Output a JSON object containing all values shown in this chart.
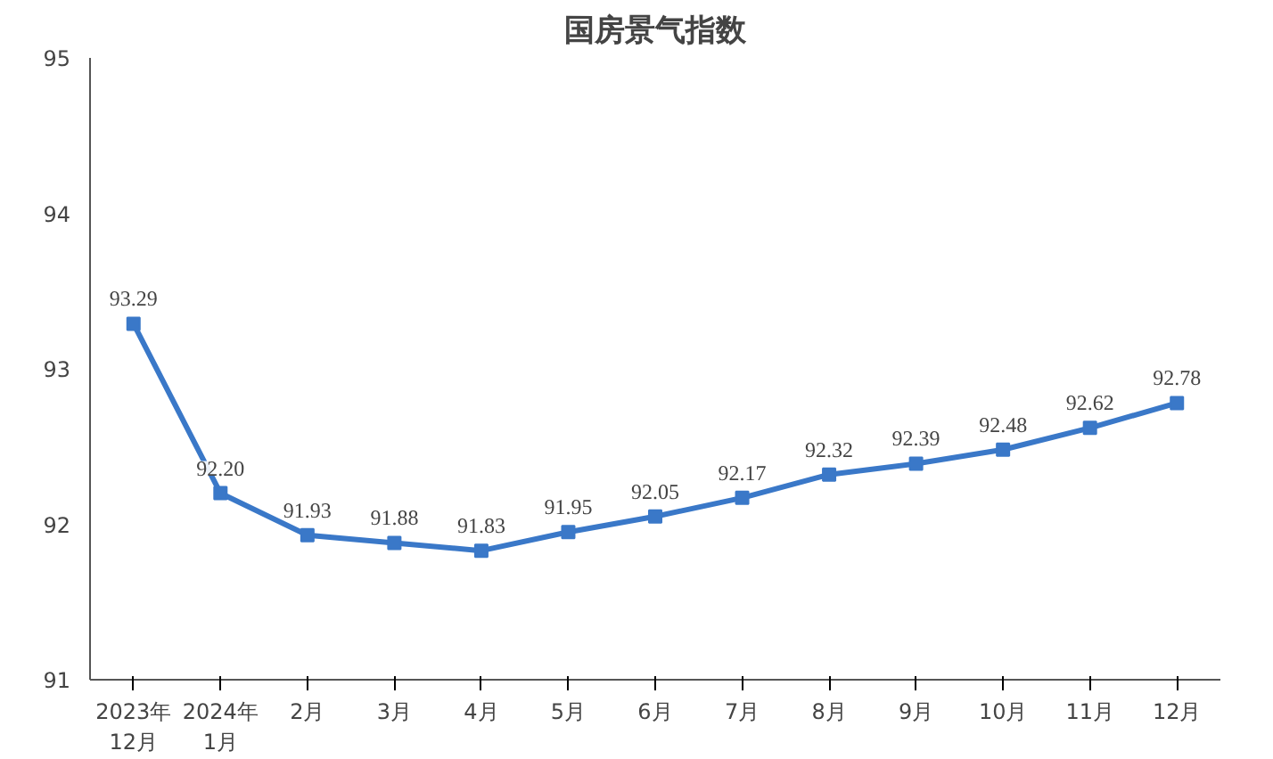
{
  "chart_data": {
    "type": "line",
    "title": "国房景气指数",
    "categories": [
      "2023年\n12月",
      "2024年\n1月",
      "2月",
      "3月",
      "4月",
      "5月",
      "6月",
      "7月",
      "8月",
      "9月",
      "10月",
      "11月",
      "12月"
    ],
    "series": [
      {
        "color": "#3a78c8",
        "values": [
          93.29,
          92.2,
          91.93,
          91.88,
          91.83,
          91.95,
          92.05,
          92.17,
          92.32,
          92.39,
          92.48,
          92.62,
          92.78
        ]
      }
    ],
    "value_labels": [
      "93.29",
      "92.20",
      "91.93",
      "91.88",
      "91.83",
      "91.95",
      "92.05",
      "92.17",
      "92.32",
      "92.39",
      "92.48",
      "92.62",
      "92.78"
    ],
    "ylim": [
      91,
      95
    ],
    "yticks": [
      91,
      92,
      93,
      94,
      95
    ],
    "grid": false,
    "marker": "square",
    "line_style": "solid"
  }
}
